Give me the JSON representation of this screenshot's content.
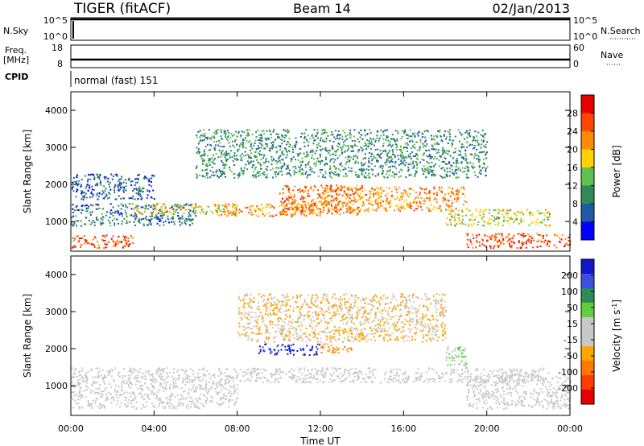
{
  "header": {
    "title": "TIGER (fitACF)",
    "beam": "Beam 14",
    "date": "02/Jan/2013"
  },
  "status_panels": {
    "nsky": {
      "label": "N.Sky",
      "ticks": [
        "10^5",
        "10^0"
      ],
      "right_label": "N.Search",
      "right_ticks": [
        "10^5",
        "10^0"
      ]
    },
    "freq": {
      "label": "Freq.",
      "unit": "[MHz]",
      "ticks": [
        "18",
        "8"
      ],
      "right_label": "Nave",
      "right_ticks": [
        "60",
        "0"
      ]
    },
    "cpid": {
      "label": "CPID",
      "value": "normal (fast) 151"
    }
  },
  "colors": {
    "power": [
      "#0000ff",
      "#1e5aa6",
      "#2e8b57",
      "#5fbf4f",
      "#ffd200",
      "#ff8c00",
      "#ff4500",
      "#e60000"
    ],
    "velocity": [
      "#1414c8",
      "#3c50dc",
      "#2e8b57",
      "#5fcf3f",
      "#c8c8c8",
      "#c8c8c8",
      "#ffa500",
      "#ff7800",
      "#ff3c00",
      "#e60000"
    ]
  },
  "chart_data": [
    {
      "type": "heatmap",
      "name": "power",
      "ylabel": "Slant Range [km]",
      "xlim_hours": [
        0,
        24
      ],
      "ylim": [
        200,
        4500
      ],
      "y_ticks": [
        1000,
        2000,
        3000,
        4000
      ],
      "colorbar": {
        "label": "Power [dB]",
        "ticks": [
          4,
          8,
          12,
          16,
          20,
          24,
          28
        ],
        "range": [
          0,
          32
        ]
      },
      "bands": [
        {
          "t": [
            0,
            6
          ],
          "r": [
            900,
            1500
          ],
          "value": 8
        },
        {
          "t": [
            0,
            3
          ],
          "r": [
            300,
            650
          ],
          "value": 26
        },
        {
          "t": [
            3,
            8
          ],
          "r": [
            1200,
            1500
          ],
          "value": 18
        },
        {
          "t": [
            7,
            12
          ],
          "r": [
            1150,
            1500
          ],
          "value": 22
        },
        {
          "t": [
            10,
            14
          ],
          "r": [
            1200,
            2000
          ],
          "value": 24
        },
        {
          "t": [
            12,
            19
          ],
          "r": [
            1300,
            1950
          ],
          "value": 22
        },
        {
          "t": [
            18,
            23
          ],
          "r": [
            900,
            1350
          ],
          "value": 16
        },
        {
          "t": [
            19,
            24
          ],
          "r": [
            300,
            700
          ],
          "value": 26
        },
        {
          "t": [
            6,
            20
          ],
          "r": [
            2200,
            3500
          ],
          "value": 10
        },
        {
          "t": [
            0,
            4
          ],
          "r": [
            1600,
            2300
          ],
          "value": 6
        }
      ]
    },
    {
      "type": "heatmap",
      "name": "velocity",
      "ylabel": "Slant Range [km]",
      "xlabel": "Time UT",
      "xlim_hours": [
        0,
        24
      ],
      "ylim": [
        200,
        4500
      ],
      "y_ticks": [
        1000,
        2000,
        3000,
        4000
      ],
      "x_ticks": [
        "00:00",
        "04:00",
        "08:00",
        "12:00",
        "16:00",
        "20:00",
        "00:00"
      ],
      "colorbar": {
        "label": "Velocity [m s^-1]",
        "ticks": [
          200,
          100,
          50,
          15,
          -15,
          -50,
          -100,
          -200
        ],
        "range": [
          -250,
          250
        ]
      },
      "bands": [
        {
          "t": [
            0,
            8
          ],
          "r": [
            400,
            1500
          ],
          "value": 0
        },
        {
          "t": [
            8,
            23
          ],
          "r": [
            1100,
            1500
          ],
          "value": 0
        },
        {
          "t": [
            9,
            12
          ],
          "r": [
            1850,
            2150
          ],
          "value": 200
        },
        {
          "t": [
            12,
            13.5
          ],
          "r": [
            1900,
            2150
          ],
          "value": -100
        },
        {
          "t": [
            18,
            19
          ],
          "r": [
            1500,
            2100
          ],
          "value": 50
        },
        {
          "t": [
            19,
            24
          ],
          "r": [
            400,
            1300
          ],
          "value": -15
        },
        {
          "t": [
            8,
            18
          ],
          "r": [
            2200,
            3500
          ],
          "value": -50
        }
      ]
    }
  ]
}
